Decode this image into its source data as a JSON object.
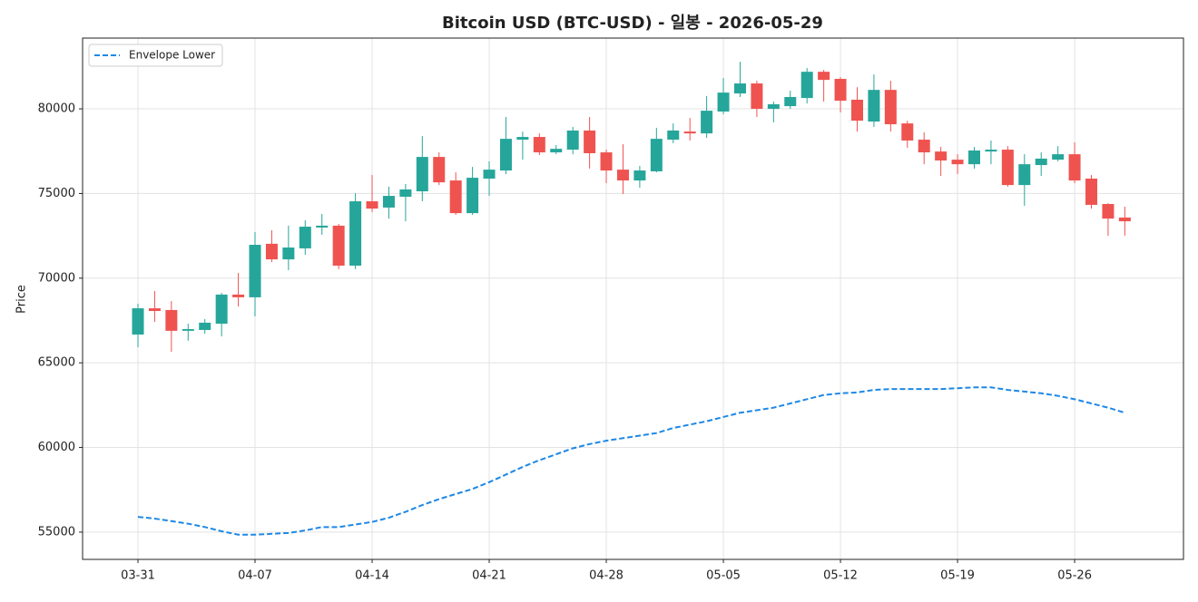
{
  "chart_data": {
    "type": "candlestick",
    "title": "Bitcoin USD (BTC-USD) - 일봉 - 2026-05-29",
    "ylabel": "Price",
    "categories": [
      "03-31",
      "04-01",
      "04-02",
      "04-03",
      "04-04",
      "04-05",
      "04-06",
      "04-07",
      "04-08",
      "04-09",
      "04-10",
      "04-11",
      "04-12",
      "04-13",
      "04-14",
      "04-15",
      "04-16",
      "04-17",
      "04-18",
      "04-19",
      "04-20",
      "04-21",
      "04-22",
      "04-23",
      "04-24",
      "04-25",
      "04-26",
      "04-27",
      "04-28",
      "04-29",
      "04-30",
      "05-01",
      "05-02",
      "05-03",
      "05-04",
      "05-05",
      "05-06",
      "05-07",
      "05-08",
      "05-09",
      "05-10",
      "05-11",
      "05-12",
      "05-13",
      "05-14",
      "05-15",
      "05-16",
      "05-17",
      "05-18",
      "05-19",
      "05-20",
      "05-21",
      "05-22",
      "05-23",
      "05-24",
      "05-25",
      "05-26",
      "05-27",
      "05-28",
      "05-29"
    ],
    "open": [
      66670,
      68220,
      68120,
      66890,
      66940,
      67310,
      69030,
      68870,
      72030,
      71110,
      71760,
      72990,
      73100,
      70740,
      74540,
      74170,
      74810,
      75130,
      77160,
      75770,
      73840,
      75880,
      76360,
      78180,
      78340,
      77430,
      77590,
      78720,
      77430,
      76410,
      75770,
      76310,
      78180,
      78660,
      78550,
      79840,
      80910,
      81500,
      80000,
      80160,
      80640,
      82190,
      81770,
      80540,
      79250,
      81120,
      79140,
      78180,
      77480,
      77000,
      76730,
      77480,
      77590,
      75500,
      76680,
      77000,
      77320,
      75880,
      74380,
      73580
    ],
    "high": [
      68490,
      69240,
      68650,
      67310,
      67580,
      69130,
      70310,
      72720,
      72830,
      73100,
      73420,
      73790,
      73200,
      75020,
      76090,
      75400,
      75560,
      78390,
      77430,
      76250,
      76570,
      76900,
      79520,
      78660,
      78550,
      77860,
      78930,
      79520,
      77590,
      77910,
      76630,
      78880,
      79140,
      79460,
      80750,
      81820,
      82780,
      81660,
      80430,
      81070,
      82410,
      82300,
      81870,
      81280,
      82030,
      81660,
      79300,
      78610,
      77750,
      77320,
      77750,
      78130,
      77800,
      77320,
      77430,
      77800,
      78020,
      76090,
      74430,
      74220
    ],
    "low": [
      65920,
      67420,
      65650,
      66300,
      66720,
      66560,
      68330,
      67740,
      70950,
      70470,
      71380,
      72560,
      70530,
      70530,
      73900,
      73520,
      73360,
      74540,
      75500,
      73740,
      73740,
      74860,
      76150,
      77000,
      77270,
      77320,
      77320,
      76470,
      75610,
      74970,
      75340,
      76250,
      77970,
      78130,
      78290,
      79680,
      80700,
      79520,
      79200,
      80000,
      80320,
      80430,
      79790,
      78660,
      78930,
      78660,
      77700,
      76730,
      76040,
      76150,
      76470,
      76730,
      75400,
      74270,
      76040,
      76900,
      75610,
      74110,
      72510,
      72510
    ],
    "close": [
      68220,
      68060,
      66890,
      66990,
      67370,
      69030,
      68870,
      71970,
      71110,
      71810,
      73040,
      73100,
      70740,
      74540,
      74110,
      74860,
      75240,
      77160,
      75660,
      73840,
      75930,
      76410,
      78230,
      78340,
      77430,
      77640,
      78720,
      77380,
      76360,
      75770,
      76360,
      78230,
      78720,
      78550,
      79890,
      80960,
      81500,
      80000,
      80270,
      80700,
      82190,
      81710,
      80480,
      79300,
      81120,
      79090,
      78130,
      77430,
      76950,
      76730,
      77540,
      77590,
      75500,
      76730,
      77060,
      77320,
      75770,
      74330,
      73520,
      73360
    ],
    "up_color": "#26a69a",
    "down_color": "#ef5350",
    "series": [
      {
        "name": "Envelope Lower",
        "color": "#1e88e5",
        "dashed": true,
        "values": [
          55900,
          55800,
          55650,
          55500,
          55300,
          55050,
          54850,
          54850,
          54900,
          54950,
          55100,
          55300,
          55300,
          55450,
          55600,
          55850,
          56200,
          56600,
          56950,
          57250,
          57550,
          57950,
          58400,
          58850,
          59250,
          59600,
          59950,
          60200,
          60400,
          60550,
          60700,
          60850,
          61150,
          61350,
          61550,
          61800,
          62050,
          62200,
          62350,
          62600,
          62850,
          63100,
          63200,
          63250,
          63400,
          63450,
          63450,
          63450,
          63450,
          63500,
          63550,
          63550,
          63400,
          63300,
          63200,
          63050,
          62850,
          62600,
          62350,
          62050
        ]
      }
    ],
    "xticks": [
      "03-31",
      "04-07",
      "04-14",
      "04-21",
      "04-28",
      "05-05",
      "05-12",
      "05-19",
      "05-26"
    ],
    "ylim": [
      53390,
      84180
    ],
    "yticks": [
      55000,
      60000,
      65000,
      70000,
      75000,
      80000
    ],
    "grid": true,
    "legend": "upper left"
  }
}
